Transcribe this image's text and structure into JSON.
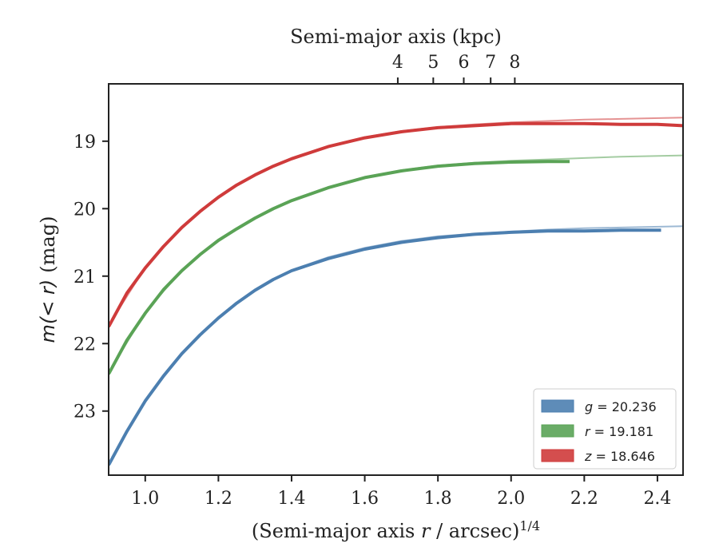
{
  "chart_data": {
    "type": "line",
    "xlabel": "(Semi-major axis r / arcsec)",
    "xlabel_prefix": "(Semi-major axis ",
    "xlabel_var": "r",
    "xlabel_suffix": " / arcsec)",
    "xlabel_exp": "1/4",
    "ylabel": "m(< r) (mag)",
    "ylabel_math": "m(< r)",
    "ylabel_unit": "(mag)",
    "top_xlabel": "Semi-major axis (kpc)",
    "xlim": [
      0.9,
      2.47
    ],
    "ylim": [
      23.95,
      18.15
    ],
    "y_inverted": true,
    "x_ticks": [
      "1.0",
      "1.2",
      "1.4",
      "1.6",
      "1.8",
      "2.0",
      "2.2",
      "2.4"
    ],
    "y_ticks": [
      "19",
      "20",
      "21",
      "22",
      "23"
    ],
    "top_ticks": [
      "4",
      "5",
      "6",
      "7",
      "8"
    ],
    "top_tick_values_kpc": [
      4,
      5,
      6,
      7,
      8
    ],
    "legend_position": "lower-right",
    "grid": false,
    "series": [
      {
        "name": "g",
        "legend_label": "g = 20.236",
        "legend_var": "g",
        "legend_value": " = 20.236",
        "color": "#4c7fb0",
        "x": [
          0.9,
          0.95,
          1.0,
          1.05,
          1.1,
          1.15,
          1.2,
          1.25,
          1.3,
          1.35,
          1.4,
          1.5,
          1.6,
          1.7,
          1.8,
          1.9,
          2.0,
          2.1,
          2.2,
          2.3,
          2.41
        ],
        "y": [
          23.8,
          23.3,
          22.85,
          22.48,
          22.15,
          21.87,
          21.62,
          21.4,
          21.21,
          21.05,
          20.92,
          20.74,
          20.6,
          20.5,
          20.43,
          20.38,
          20.35,
          20.33,
          20.33,
          20.32,
          20.32
        ],
        "model_x": [
          0.9,
          1.0,
          1.1,
          1.2,
          1.3,
          1.4,
          1.5,
          1.6,
          1.7,
          1.8,
          1.9,
          2.0,
          2.1,
          2.2,
          2.3,
          2.47
        ],
        "model_y": [
          23.78,
          22.84,
          22.14,
          21.61,
          21.2,
          20.91,
          20.72,
          20.58,
          20.48,
          20.41,
          20.37,
          20.34,
          20.31,
          20.29,
          20.28,
          20.26
        ]
      },
      {
        "name": "r",
        "legend_label": "r = 19.181",
        "legend_var": "r",
        "legend_value": " = 19.181",
        "color": "#5aa356",
        "x": [
          0.9,
          0.95,
          1.0,
          1.05,
          1.1,
          1.15,
          1.2,
          1.25,
          1.3,
          1.35,
          1.4,
          1.5,
          1.6,
          1.7,
          1.8,
          1.9,
          2.0,
          2.1,
          2.16
        ],
        "y": [
          22.45,
          21.95,
          21.55,
          21.2,
          20.92,
          20.68,
          20.47,
          20.3,
          20.14,
          20.0,
          19.88,
          19.69,
          19.54,
          19.44,
          19.37,
          19.33,
          19.31,
          19.3,
          19.3
        ],
        "model_x": [
          0.9,
          1.0,
          1.1,
          1.2,
          1.3,
          1.4,
          1.5,
          1.6,
          1.7,
          1.8,
          1.9,
          2.0,
          2.1,
          2.2,
          2.3,
          2.47
        ],
        "model_y": [
          22.43,
          21.54,
          20.91,
          20.46,
          20.13,
          19.87,
          19.68,
          19.53,
          19.43,
          19.36,
          19.32,
          19.29,
          19.27,
          19.25,
          19.23,
          19.21
        ]
      },
      {
        "name": "z",
        "legend_label": "z = 18.646",
        "legend_var": "z",
        "legend_value": " = 18.646",
        "color": "#cf3b3b",
        "x": [
          0.9,
          0.95,
          1.0,
          1.05,
          1.1,
          1.15,
          1.2,
          1.25,
          1.3,
          1.35,
          1.4,
          1.5,
          1.6,
          1.7,
          1.8,
          1.9,
          2.0,
          2.1,
          2.2,
          2.3,
          2.4,
          2.47
        ],
        "y": [
          21.75,
          21.25,
          20.88,
          20.56,
          20.28,
          20.04,
          19.83,
          19.65,
          19.5,
          19.37,
          19.26,
          19.08,
          18.95,
          18.86,
          18.8,
          18.77,
          18.74,
          18.74,
          18.74,
          18.75,
          18.75,
          18.77
        ],
        "model_x": [
          0.9,
          1.0,
          1.1,
          1.2,
          1.3,
          1.4,
          1.5,
          1.6,
          1.7,
          1.8,
          1.9,
          2.0,
          2.1,
          2.2,
          2.3,
          2.47
        ],
        "model_y": [
          21.73,
          20.87,
          20.27,
          19.82,
          19.49,
          19.25,
          19.07,
          18.94,
          18.85,
          18.79,
          18.75,
          18.72,
          18.7,
          18.68,
          18.67,
          18.65
        ]
      }
    ]
  }
}
